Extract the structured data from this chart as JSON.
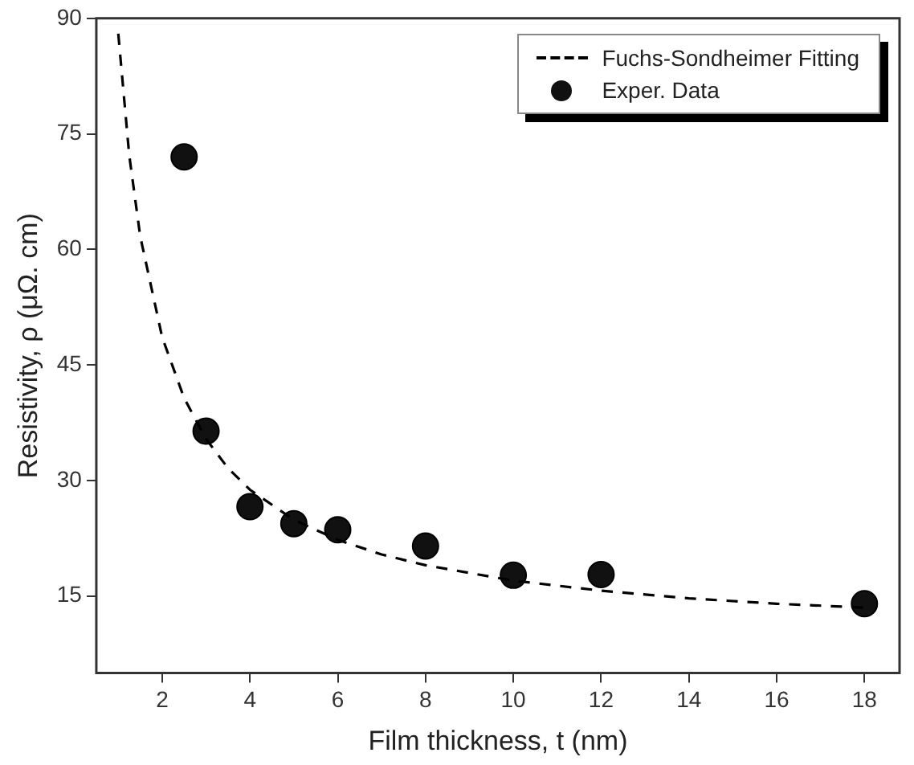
{
  "chart_data": {
    "type": "scatter",
    "xlabel": "Film thickness, t (nm)",
    "ylabel": "Resistivity, ρ (μΩ. cm)",
    "xlim": [
      0.5,
      18.8
    ],
    "xticks": [
      2,
      4,
      6,
      8,
      10,
      12,
      14,
      16,
      18
    ],
    "ylim": [
      5,
      90
    ],
    "yticks": [
      15,
      30,
      45,
      60,
      75,
      90
    ],
    "grid": false,
    "legend": "top right",
    "series": [
      {
        "name": "Fuchs-Sondheimer Fitting",
        "type": "line",
        "line_style": "dashed",
        "marker": "none",
        "color": "#000000",
        "x": [
          1,
          1.25,
          1.5,
          2,
          2.5,
          3,
          3.5,
          4,
          5,
          6,
          7,
          8,
          10,
          12,
          14,
          16,
          18
        ],
        "values": [
          88,
          72.2,
          61.7,
          48.6,
          40.7,
          35.4,
          31.6,
          28.8,
          24.9,
          22.3,
          20.4,
          19.0,
          17.0,
          15.7,
          14.7,
          14.0,
          13.5
        ]
      },
      {
        "name": "Exper. Data",
        "marker": "circle",
        "color": "#111111",
        "x": [
          2.5,
          3,
          4,
          5,
          6,
          8,
          10,
          12,
          18
        ],
        "values": [
          72,
          36.4,
          26.6,
          24.4,
          23.6,
          21.5,
          17.7,
          17.8,
          14.0
        ]
      }
    ]
  }
}
